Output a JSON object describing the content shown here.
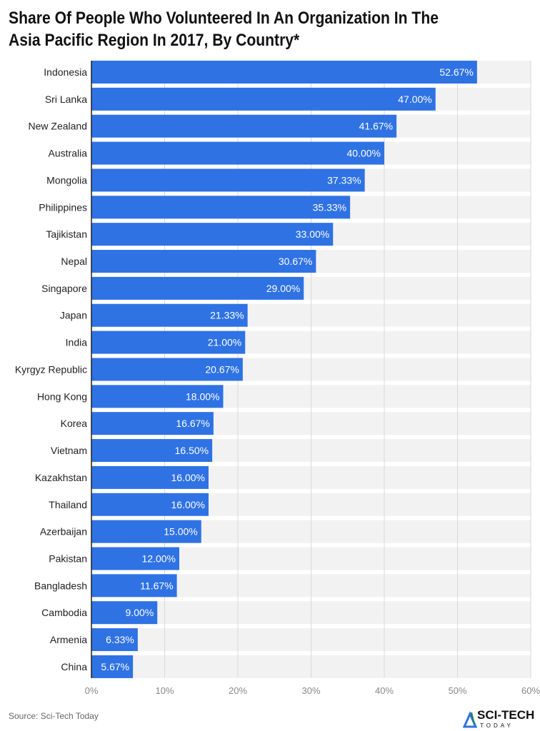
{
  "chart_data": {
    "type": "bar",
    "orientation": "horizontal",
    "title": "Share Of People Who Volunteered In An Organization In The Asia Pacific Region In 2017, By Country*",
    "categories": [
      "Indonesia",
      "Sri Lanka",
      "New Zealand",
      "Australia",
      "Mongolia",
      "Philippines",
      "Tajikistan",
      "Nepal",
      "Singapore",
      "Japan",
      "India",
      "Kyrgyz Republic",
      "Hong Kong",
      "Korea",
      "Vietnam",
      "Kazakhstan",
      "Thailand",
      "Azerbaijan",
      "Pakistan",
      "Bangladesh",
      "Cambodia",
      "Armenia",
      "China"
    ],
    "values": [
      52.67,
      47.0,
      41.67,
      40.0,
      37.33,
      35.33,
      33.0,
      30.67,
      29.0,
      21.33,
      21.0,
      20.67,
      18.0,
      16.67,
      16.5,
      16.0,
      16.0,
      15.0,
      12.0,
      11.67,
      9.0,
      6.33,
      5.67
    ],
    "data_labels": [
      "52.67%",
      "47.00%",
      "41.67%",
      "40.00%",
      "37.33%",
      "35.33%",
      "33.00%",
      "30.67%",
      "29.00%",
      "21.33%",
      "21.00%",
      "20.67%",
      "18.00%",
      "16.67%",
      "16.50%",
      "16.00%",
      "16.00%",
      "15.00%",
      "12.00%",
      "11.67%",
      "9.00%",
      "6.33%",
      "5.67%"
    ],
    "xlim": [
      0,
      60
    ],
    "x_ticks": [
      "0%",
      "10%",
      "20%",
      "30%",
      "40%",
      "50%",
      "60%"
    ],
    "xlabel": "",
    "ylabel": "",
    "grid": true,
    "colors": {
      "bar": "#2f72e4",
      "band": "#f2f2f2",
      "grid": "#d9d9d9"
    }
  },
  "footer": {
    "source": "Source: Sci-Tech Today",
    "logo_text": "SCI-TECH",
    "logo_sub": "TODAY"
  }
}
